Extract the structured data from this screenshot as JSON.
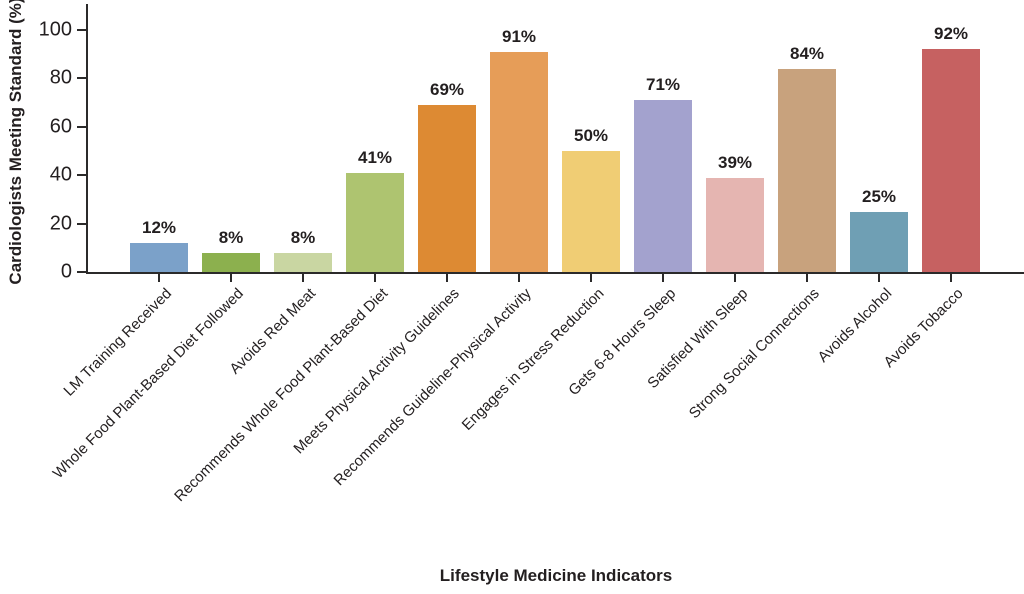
{
  "chart_data": {
    "type": "bar",
    "title": "",
    "xlabel": "Lifestyle Medicine Indicators",
    "ylabel": "Cardiologists Meeting Standard (%)",
    "ylim": [
      0,
      110
    ],
    "yticks": [
      0,
      20,
      40,
      60,
      80,
      100
    ],
    "grid": false,
    "legend": null,
    "categories": [
      "LM Training Received",
      "Whole Food Plant-Based Diet Followed",
      "Avoids Red Meat",
      "Recommends Whole Food Plant-Based Diet",
      "Meets Physical Activity Guidelines",
      "Recommends Guideline-Physical Activity",
      "Engages in Stress Reduction",
      "Gets 6-8 Hours Sleep",
      "Satisfied With Sleep",
      "Strong Social Connections",
      "Avoids Alcohol",
      "Avoids Tobacco"
    ],
    "values": [
      12,
      8,
      8,
      41,
      69,
      91,
      50,
      71,
      39,
      84,
      25,
      92
    ],
    "value_labels": [
      "12%",
      "8%",
      "8%",
      "41%",
      "69%",
      "91%",
      "50%",
      "71%",
      "39%",
      "84%",
      "25%",
      "92%"
    ],
    "bar_colors": [
      "#7ba1c9",
      "#8cb04e",
      "#c9d6a2",
      "#aec470",
      "#dd8a33",
      "#e69d58",
      "#f0cd74",
      "#a3a2ce",
      "#e5b5b1",
      "#c8a27d",
      "#6f9fb4",
      "#c66161"
    ],
    "axis_color": "#2b2a2a",
    "text_color": "#231f20"
  }
}
